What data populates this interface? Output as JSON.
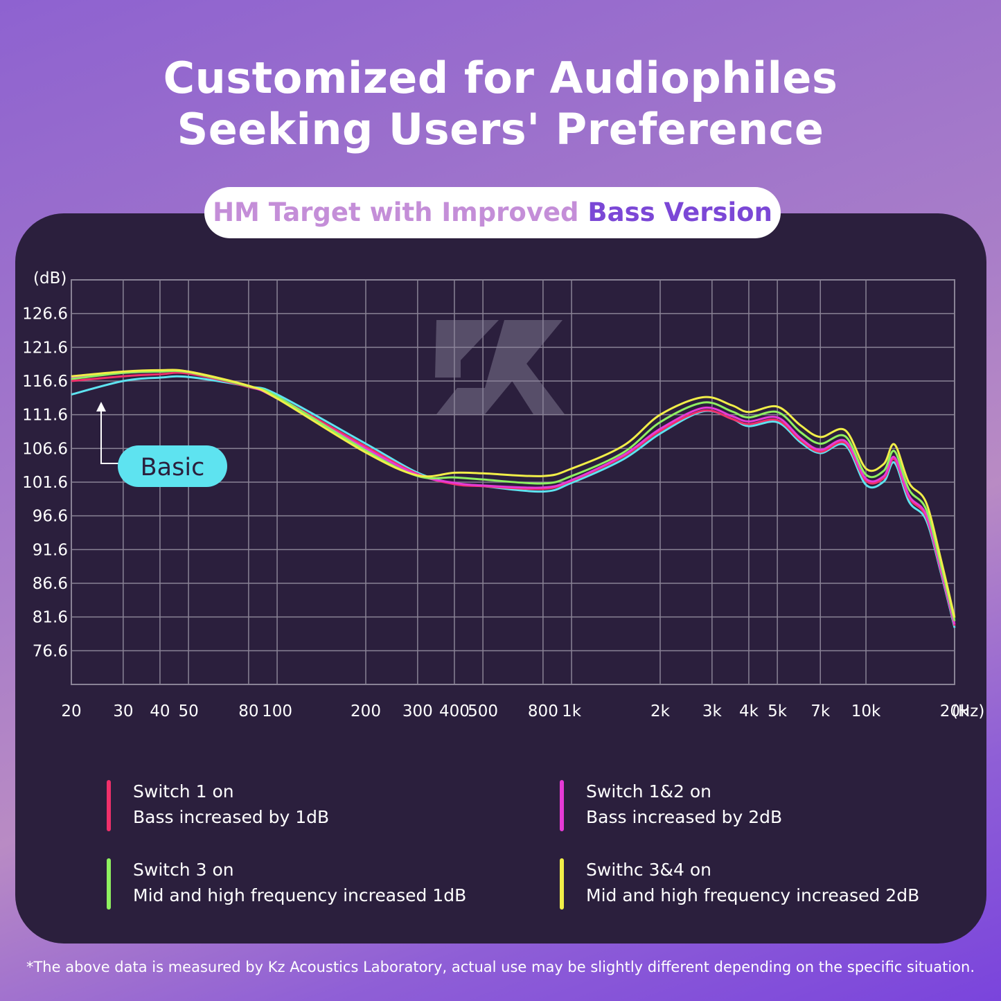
{
  "header": {
    "title_line1": "Customized for Audiophiles",
    "title_line2": "Seeking Users' Preference"
  },
  "subtitle": {
    "part1": "HM Target with Improved ",
    "part2": "Bass Version"
  },
  "chart_data": {
    "type": "line",
    "x_scale": "log",
    "y_unit_label": "(dB)",
    "x_unit_label": "(Hz)",
    "xlim": [
      20,
      20000
    ],
    "ylim": [
      71.6,
      131.6
    ],
    "grid": true,
    "y_ticks": [
      126.6,
      121.6,
      116.6,
      111.6,
      106.6,
      101.6,
      96.6,
      91.6,
      86.6,
      81.6,
      76.6
    ],
    "y_tick_labels": [
      "126.6",
      "121.6",
      "116.6",
      "111.6",
      "106.6",
      "101.6",
      "96.6",
      "91.6",
      "86.6",
      "81.6",
      "76.6"
    ],
    "x_ticks": [
      20,
      30,
      40,
      50,
      80,
      100,
      200,
      300,
      400,
      500,
      800,
      1000,
      2000,
      3000,
      4000,
      5000,
      7000,
      10000,
      20000
    ],
    "x_tick_labels": [
      "20",
      "30",
      "40",
      "50",
      "80",
      "100",
      "200",
      "300",
      "400",
      "500",
      "800",
      "1k",
      "2k",
      "3k",
      "4k",
      "5k",
      "7k",
      "10k",
      "20k"
    ],
    "x": [
      20,
      30,
      40,
      50,
      80,
      100,
      200,
      300,
      400,
      500,
      800,
      1000,
      1500,
      2000,
      2800,
      3500,
      4000,
      5000,
      6000,
      7000,
      8500,
      10000,
      11500,
      12500,
      14000,
      16000,
      18000,
      20000
    ],
    "annotation": "Basic",
    "series": [
      {
        "key": "basic",
        "color": "#5ee3f0",
        "values": [
          114.6,
          116.6,
          117.1,
          117.2,
          115.8,
          114.6,
          107.3,
          103.0,
          101.4,
          101.0,
          100.2,
          101.5,
          105.0,
          108.8,
          112.1,
          111.0,
          109.9,
          110.5,
          107.5,
          105.9,
          107.1,
          101.2,
          101.7,
          104.5,
          98.7,
          96.0,
          88.0,
          80.0
        ]
      },
      {
        "key": "switch1",
        "color": "#f0306a",
        "values": [
          116.6,
          117.3,
          117.6,
          117.7,
          115.7,
          114.2,
          106.9,
          102.8,
          101.3,
          101.0,
          100.6,
          101.8,
          105.4,
          109.2,
          112.2,
          111.0,
          110.2,
          110.8,
          107.8,
          106.1,
          107.4,
          101.8,
          102.2,
          105.0,
          99.3,
          96.5,
          88.3,
          80.3
        ]
      },
      {
        "key": "switch12",
        "color": "#e63ad6",
        "values": [
          117.2,
          117.8,
          118.0,
          118.0,
          115.8,
          114.0,
          106.6,
          102.7,
          101.5,
          101.1,
          100.8,
          101.9,
          105.6,
          109.5,
          112.6,
          111.4,
          110.6,
          111.2,
          108.1,
          106.4,
          107.7,
          102.1,
          102.5,
          105.3,
          99.6,
          96.8,
          88.5,
          80.5
        ]
      },
      {
        "key": "switch3",
        "color": "#8ff060",
        "values": [
          116.9,
          117.8,
          118.0,
          117.9,
          115.8,
          114.3,
          106.3,
          102.5,
          102.3,
          102.0,
          101.4,
          102.5,
          106.0,
          110.5,
          113.4,
          112.1,
          111.2,
          112.0,
          109.0,
          107.3,
          108.4,
          102.7,
          103.3,
          106.2,
          100.5,
          97.6,
          89.2,
          81.0
        ]
      },
      {
        "key": "switch34",
        "color": "#f1ee48",
        "values": [
          117.3,
          118.0,
          118.2,
          118.0,
          115.9,
          114.0,
          106.0,
          102.6,
          103.0,
          102.9,
          102.5,
          103.6,
          107.0,
          111.6,
          114.2,
          113.0,
          112.0,
          112.8,
          110.0,
          108.3,
          109.3,
          103.6,
          104.3,
          107.2,
          101.5,
          98.6,
          90.0,
          81.5
        ]
      }
    ]
  },
  "legend": [
    {
      "color": "#f0306a",
      "line1": "Switch 1 on",
      "line2": "Bass increased by 1dB"
    },
    {
      "color": "#e63ad6",
      "line1": "Switch 1&2 on",
      "line2": "Bass increased by 2dB"
    },
    {
      "color": "#8ff060",
      "line1": "Switch 3 on",
      "line2": "Mid and high frequency increased 1dB"
    },
    {
      "color": "#f1ee48",
      "line1": "Swithc 3&4 on",
      "line2": "Mid and high frequency increased 2dB"
    }
  ],
  "logo_text": "KZ",
  "footnote": "*The above data is measured by Kz Acoustics Laboratory, actual use may be slightly different depending on the specific situation."
}
